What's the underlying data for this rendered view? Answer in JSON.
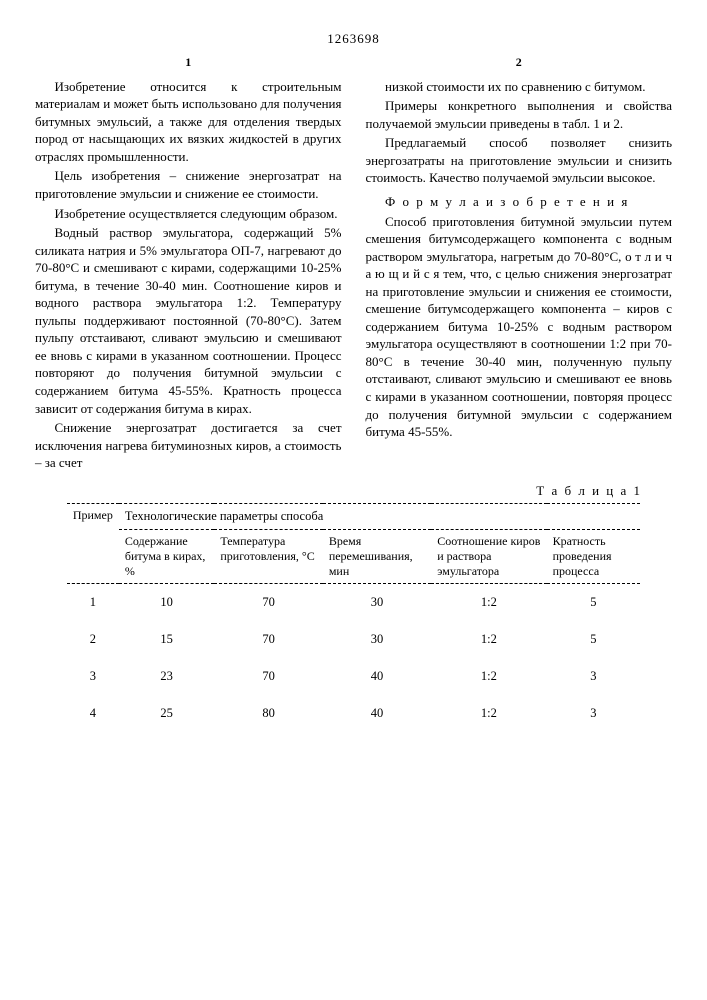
{
  "doc_number": "1263698",
  "col1_num": "1",
  "col2_num": "2",
  "left_paragraphs": [
    "Изобретение относится к строительным материалам и может быть использовано для получения битумных эмульсий, а также для отделения твердых пород от насыщающих их вязких жидкостей в других отраслях промышленности.",
    "Цель изобретения – снижение энергозатрат на приготовление эмульсии и снижение ее стоимости.",
    "Изобретение осуществляется следующим образом.",
    "Водный раствор эмульгатора, содержащий 5% силиката натрия и 5% эмульгатора ОП-7, нагревают до 70-80°С и смешивают с кирами, содержащими 10-25% битума, в течение 30-40 мин. Соотношение киров и водного раствора эмульгатора 1:2. Температуру пульпы поддерживают постоянной (70-80°С). Затем пульпу отстаивают, сливают эмульсию и смешивают ее вновь с кирами в указанном соотношении. Процесс повторяют до получения битумной эмульсии с содержанием битума 45-55%. Кратность процесса зависит от содержания битума в кирах.",
    "Снижение энергозатрат достигается за счет исключения нагрева битуминозных киров, а стоимость – за счет"
  ],
  "right_paragraphs": [
    "низкой стоимости их по сравнению с битумом.",
    "Примеры конкретного выполнения и свойства получаемой эмульсии приведены в табл. 1 и 2.",
    "Предлагаемый способ позволяет снизить энергозатраты на приготовление эмульсии и снизить стоимость. Качество получаемой эмульсии высокое."
  ],
  "formula_header": "Ф о р м у л а  и з о б р е т е н и я",
  "formula_text": "Способ приготовления битумной эмульсии путем смешения битумсодержащего компонента с водным раствором эмульгатора, нагретым до 70-80°С, о т л и ч а ю щ и й с я  тем, что, с целью снижения энергозатрат на приготовление эмульсии и снижения ее стоимости, смешение битумсодержащего компонента – киров с содержанием битума 10-25% с водным раствором эмульгатора осуществляют в соотношении 1:2 при 70-80°С в течение 30-40 мин, полученную пульпу отстаивают, сливают эмульсию и смешивают ее вновь с кирами в указанном соотношении, повторяя процесс до получения битумной эмульсии с содержанием битума 45-55%.",
  "table": {
    "title": "Т а б л и ц а  1",
    "col_primer": "Пример",
    "group_header": "Технологические параметры способа",
    "columns": [
      "Содержание битума в кирах, %",
      "Температура приготовления, °С",
      "Время перемешивания, мин",
      "Соотношение киров и раствора эмульгатора",
      "Кратность проведения процесса"
    ],
    "rows": [
      [
        "1",
        "10",
        "70",
        "30",
        "1:2",
        "5"
      ],
      [
        "2",
        "15",
        "70",
        "30",
        "1:2",
        "5"
      ],
      [
        "3",
        "23",
        "70",
        "40",
        "1:2",
        "3"
      ],
      [
        "4",
        "25",
        "80",
        "40",
        "1:2",
        "3"
      ]
    ]
  }
}
